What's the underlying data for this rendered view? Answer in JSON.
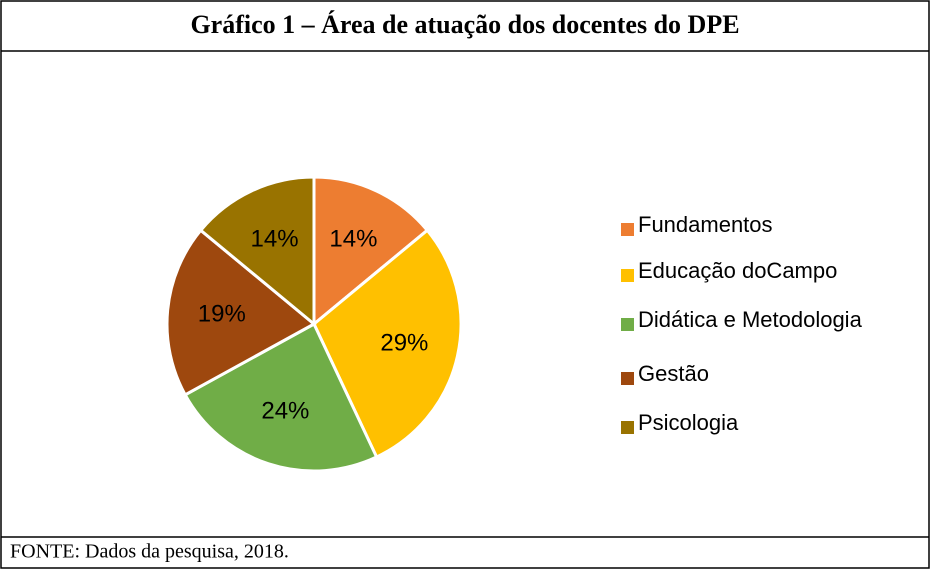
{
  "chart_data": {
    "type": "pie",
    "title": "Gráfico 1 – Área de atuação dos docentes do DPE",
    "source": "FONTE: Dados da pesquisa, 2018.",
    "categories": [
      "Fundamentos",
      "Educação doCampo",
      "Didática e Metodologia",
      "Gestão",
      "Psicologia"
    ],
    "values": [
      14,
      29,
      24,
      19,
      14
    ],
    "value_labels": [
      "14%",
      "29%",
      "24%",
      "19%",
      "14%"
    ],
    "colors": [
      "#ED7D31",
      "#FFC000",
      "#70AD47",
      "#9E480E",
      "#997300"
    ],
    "legend": "right"
  }
}
